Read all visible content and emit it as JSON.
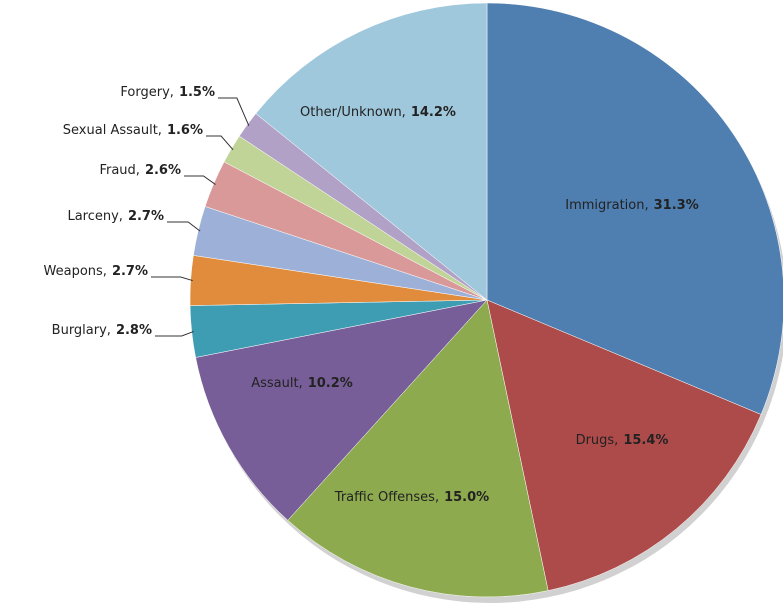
{
  "chart_data": {
    "type": "pie",
    "categories": [
      "Immigration,",
      "Drugs,",
      "Traffic Offenses,",
      "Assault,",
      "Burglary,",
      "Weapons,",
      "Larceny,",
      "Fraud,",
      "Sexual Assault,",
      "Forgery,",
      "Other/Unknown,"
    ],
    "values": [
      31.3,
      15.4,
      15.0,
      10.2,
      2.8,
      2.7,
      2.7,
      2.6,
      1.6,
      1.5,
      14.2
    ],
    "value_labels": [
      "31.3%",
      "15.4%",
      "15.0%",
      "10.2%",
      "2.8%",
      "2.7%",
      "2.7%",
      "2.6%",
      "1.6%",
      "1.5%",
      "14.2%"
    ],
    "colors": [
      "#4f7eb0",
      "#ad4b4a",
      "#8dab4e",
      "#785e98",
      "#3f9db3",
      "#e08c3c",
      "#9db1d8",
      "#da9999",
      "#c0d498",
      "#b1a1c6",
      "#a0c8dc"
    ]
  }
}
